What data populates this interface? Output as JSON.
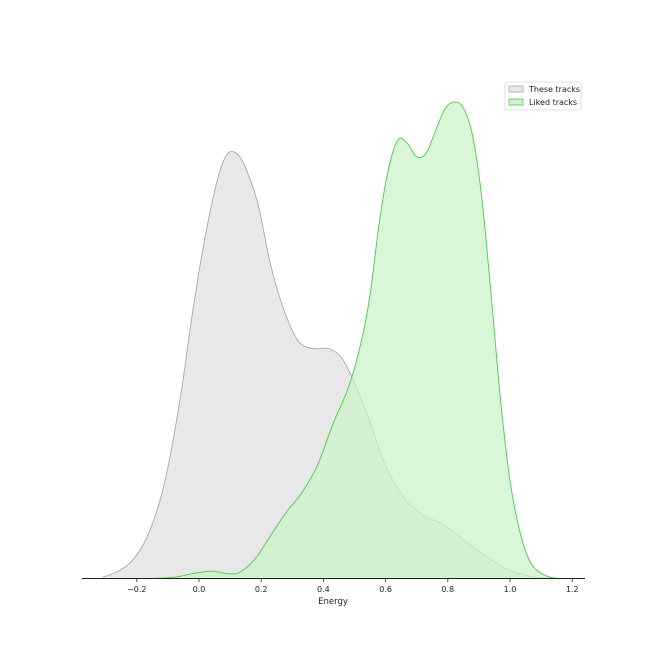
{
  "chart_data": {
    "type": "area",
    "title": "",
    "xlabel": "Energy",
    "ylabel": "",
    "xlim": [
      -0.38,
      1.25
    ],
    "ylim": [
      0,
      3.9
    ],
    "xticks": [
      {
        "value": -0.2,
        "label": "−0.2"
      },
      {
        "value": 0.0,
        "label": "0.0"
      },
      {
        "value": 0.2,
        "label": "0.2"
      },
      {
        "value": 0.4,
        "label": "0.4"
      },
      {
        "value": 0.6,
        "label": "0.6"
      },
      {
        "value": 0.8,
        "label": "0.8"
      },
      {
        "value": 1.0,
        "label": "1.0"
      },
      {
        "value": 1.2,
        "label": "1.2"
      }
    ],
    "grid": false,
    "legend_position": "top-right",
    "series": [
      {
        "name": "These tracks",
        "fill": "#e8e8e8",
        "stroke": "#a8a8a8",
        "points": [
          [
            -0.31,
            0.01
          ],
          [
            -0.26,
            0.06
          ],
          [
            -0.21,
            0.16
          ],
          [
            -0.16,
            0.38
          ],
          [
            -0.11,
            0.79
          ],
          [
            -0.06,
            1.48
          ],
          [
            -0.02,
            2.19
          ],
          [
            0.02,
            2.8
          ],
          [
            0.06,
            3.27
          ],
          [
            0.09,
            3.47
          ],
          [
            0.12,
            3.48
          ],
          [
            0.15,
            3.36
          ],
          [
            0.19,
            3.06
          ],
          [
            0.23,
            2.57
          ],
          [
            0.27,
            2.22
          ],
          [
            0.31,
            1.98
          ],
          [
            0.34,
            1.9
          ],
          [
            0.38,
            1.88
          ],
          [
            0.42,
            1.88
          ],
          [
            0.46,
            1.8
          ],
          [
            0.5,
            1.6
          ],
          [
            0.55,
            1.28
          ],
          [
            0.6,
            0.92
          ],
          [
            0.66,
            0.66
          ],
          [
            0.72,
            0.52
          ],
          [
            0.78,
            0.45
          ],
          [
            0.83,
            0.36
          ],
          [
            0.88,
            0.26
          ],
          [
            0.93,
            0.17
          ],
          [
            0.98,
            0.09
          ],
          [
            1.03,
            0.04
          ],
          [
            1.08,
            0.01
          ],
          [
            1.13,
            0.0
          ]
        ]
      },
      {
        "name": "Liked tracks",
        "fill": "#cbf3cb",
        "stroke": "#4cc94c",
        "points": [
          [
            -0.15,
            0.0
          ],
          [
            -0.08,
            0.01
          ],
          [
            -0.02,
            0.04
          ],
          [
            0.04,
            0.06
          ],
          [
            0.09,
            0.04
          ],
          [
            0.13,
            0.05
          ],
          [
            0.18,
            0.16
          ],
          [
            0.23,
            0.35
          ],
          [
            0.28,
            0.54
          ],
          [
            0.33,
            0.7
          ],
          [
            0.38,
            0.92
          ],
          [
            0.43,
            1.26
          ],
          [
            0.48,
            1.56
          ],
          [
            0.52,
            1.92
          ],
          [
            0.55,
            2.32
          ],
          [
            0.58,
            2.92
          ],
          [
            0.61,
            3.36
          ],
          [
            0.64,
            3.59
          ],
          [
            0.67,
            3.56
          ],
          [
            0.7,
            3.45
          ],
          [
            0.73,
            3.48
          ],
          [
            0.76,
            3.66
          ],
          [
            0.79,
            3.84
          ],
          [
            0.82,
            3.9
          ],
          [
            0.85,
            3.85
          ],
          [
            0.88,
            3.62
          ],
          [
            0.91,
            3.1
          ],
          [
            0.94,
            2.3
          ],
          [
            0.97,
            1.45
          ],
          [
            1.0,
            0.8
          ],
          [
            1.03,
            0.4
          ],
          [
            1.06,
            0.16
          ],
          [
            1.09,
            0.06
          ],
          [
            1.13,
            0.01
          ],
          [
            1.17,
            0.0
          ]
        ]
      }
    ]
  }
}
